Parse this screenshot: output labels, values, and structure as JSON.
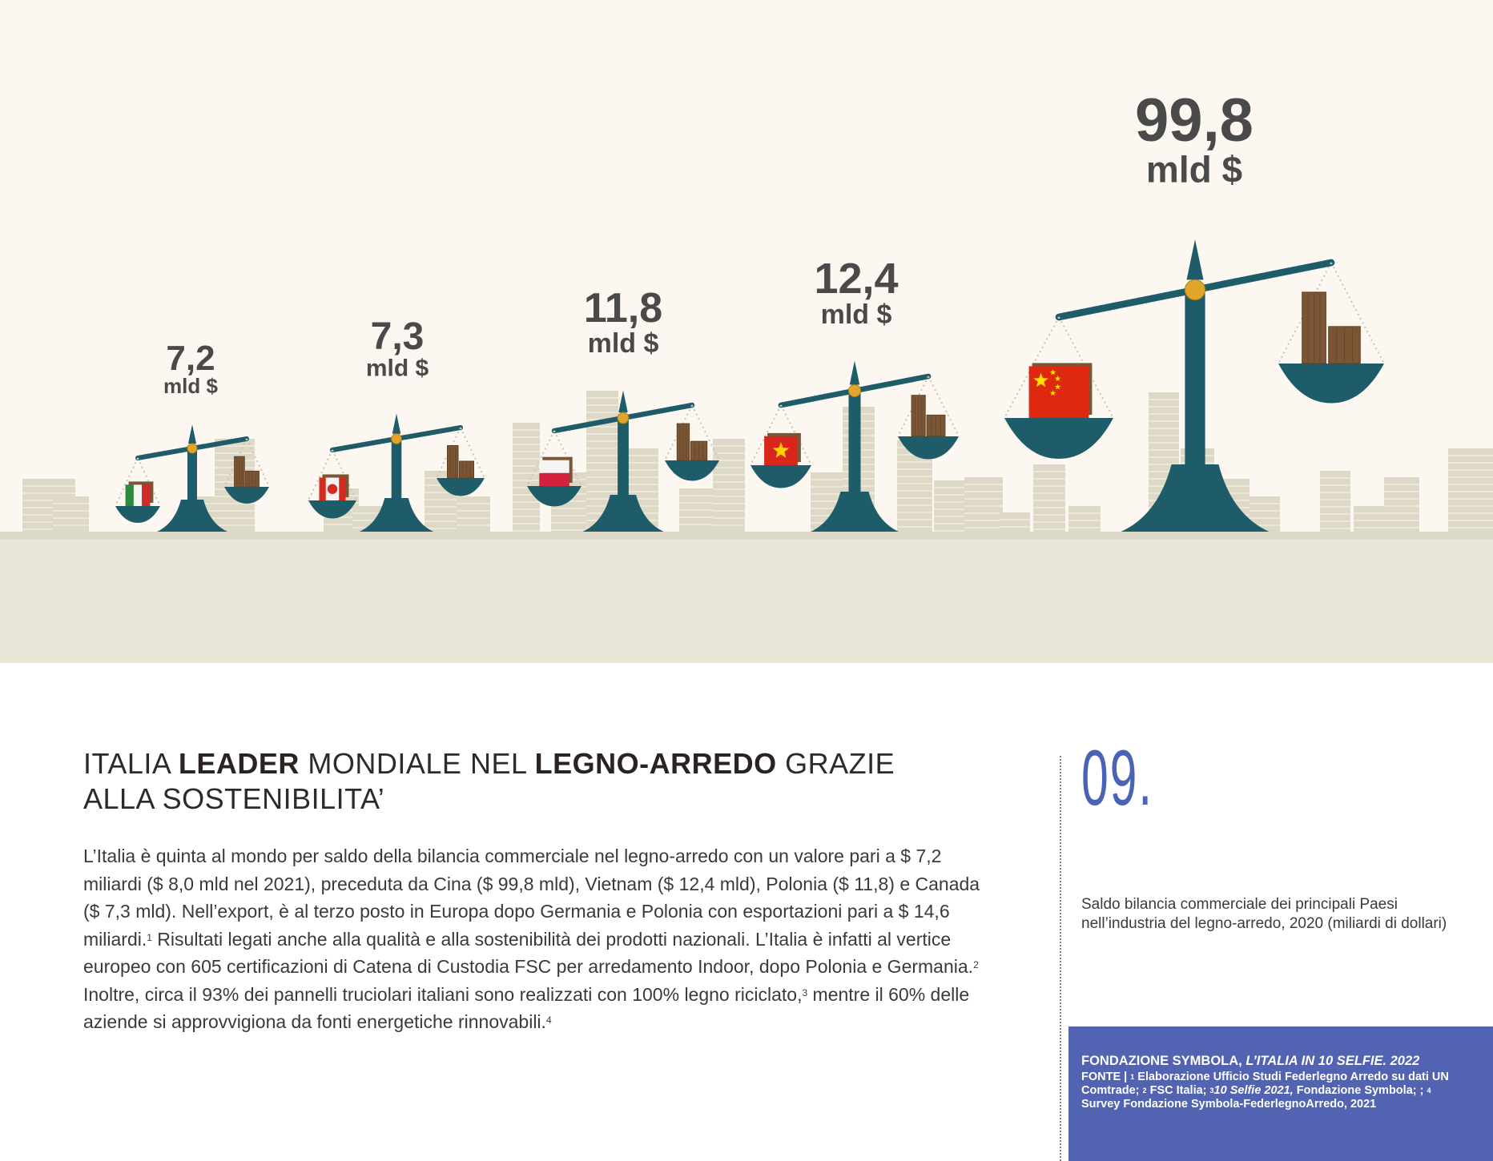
{
  "chart_data": {
    "type": "bar",
    "title": "Saldo bilancia commerciale dei principali Paesi nell'industria del legno-arredo, 2020 (miliardi di dollari)",
    "categories": [
      "Italia",
      "Canada",
      "Polonia",
      "Vietnam",
      "Cina"
    ],
    "values": [
      7.2,
      7.3,
      11.8,
      12.4,
      99.8
    ],
    "value_labels": [
      "7,2",
      "7,3",
      "11,8",
      "12,4",
      "99,8"
    ],
    "unit_label": "mld $",
    "xlabel": "",
    "ylabel": "miliardi di dollari"
  },
  "colors": {
    "background_top": "#fcf7f0",
    "ground": "#e9e6d8",
    "scale_teal": "#1f5c6a",
    "gold": "#e0a52a",
    "wood": "#7c5634",
    "value_text": "#4a4a4a",
    "accent_blue": "#5263b1"
  },
  "heading": {
    "p1": "ITALIA ",
    "b1": "LEADER",
    "p2": " MONDIALE NEL ",
    "b2": "LEGNO-ARREDO",
    "p3": " GRAZIE",
    "line2": "ALLA SOSTENIBILITA’"
  },
  "body": {
    "t1": "L’Italia è quinta al mondo per saldo della bilancia commerciale nel legno-arredo con un valore pari a $ 7,2 miliardi ($ 8,0 mld nel 2021), preceduta da Cina ($ 99,8 mld), Vietnam ($ 12,4 mld), Polonia ($ 11,8) e Canada ($ 7,3 mld). Nell’export, è al terzo posto in Europa dopo Germania e Polonia con esportazioni pari a $ 14,6 miliardi.",
    "s1": "1",
    "t2": " Risultati legati anche alla qualità e alla sostenibilità dei prodotti nazionali. L’Italia è infatti al vertice europeo con 605 certificazioni di Catena di Custodia FSC per arredamento Indoor, dopo Polonia e Germania.",
    "s2": "2",
    "t3": " Inoltre, circa il 93% dei pannelli truciolari italiani sono realizzati con 100% legno riciclato,",
    "s3": "3",
    "t4": " mentre il 60% delle aziende si approvvigiona da fonti energetiche rinnovabili.",
    "s4": "4"
  },
  "figure_number": "09.",
  "caption": "Saldo bilancia commerciale dei principali Paesi nell’industria del legno-arredo, 2020 (miliardi di dollari)",
  "source": {
    "org": "FONDAZIONE SYMBOLA, ",
    "pub": "L’ITALIA IN 10 SELFIE. 2022",
    "l1": "FONTE | ",
    "n1": "1",
    "l2": " Elaborazione Ufficio Studi Federlegno Arredo su dati UN Comtrade; ",
    "n2": "2",
    "l3": " FSC Italia; ",
    "n3": "3",
    "l4": "10 Selfie 2021,",
    "l5": " Fondazione Symbola; ; ",
    "n4": "4",
    "l6": " Survey Fondazione Symbola-FederlegnoArredo, 2021"
  }
}
